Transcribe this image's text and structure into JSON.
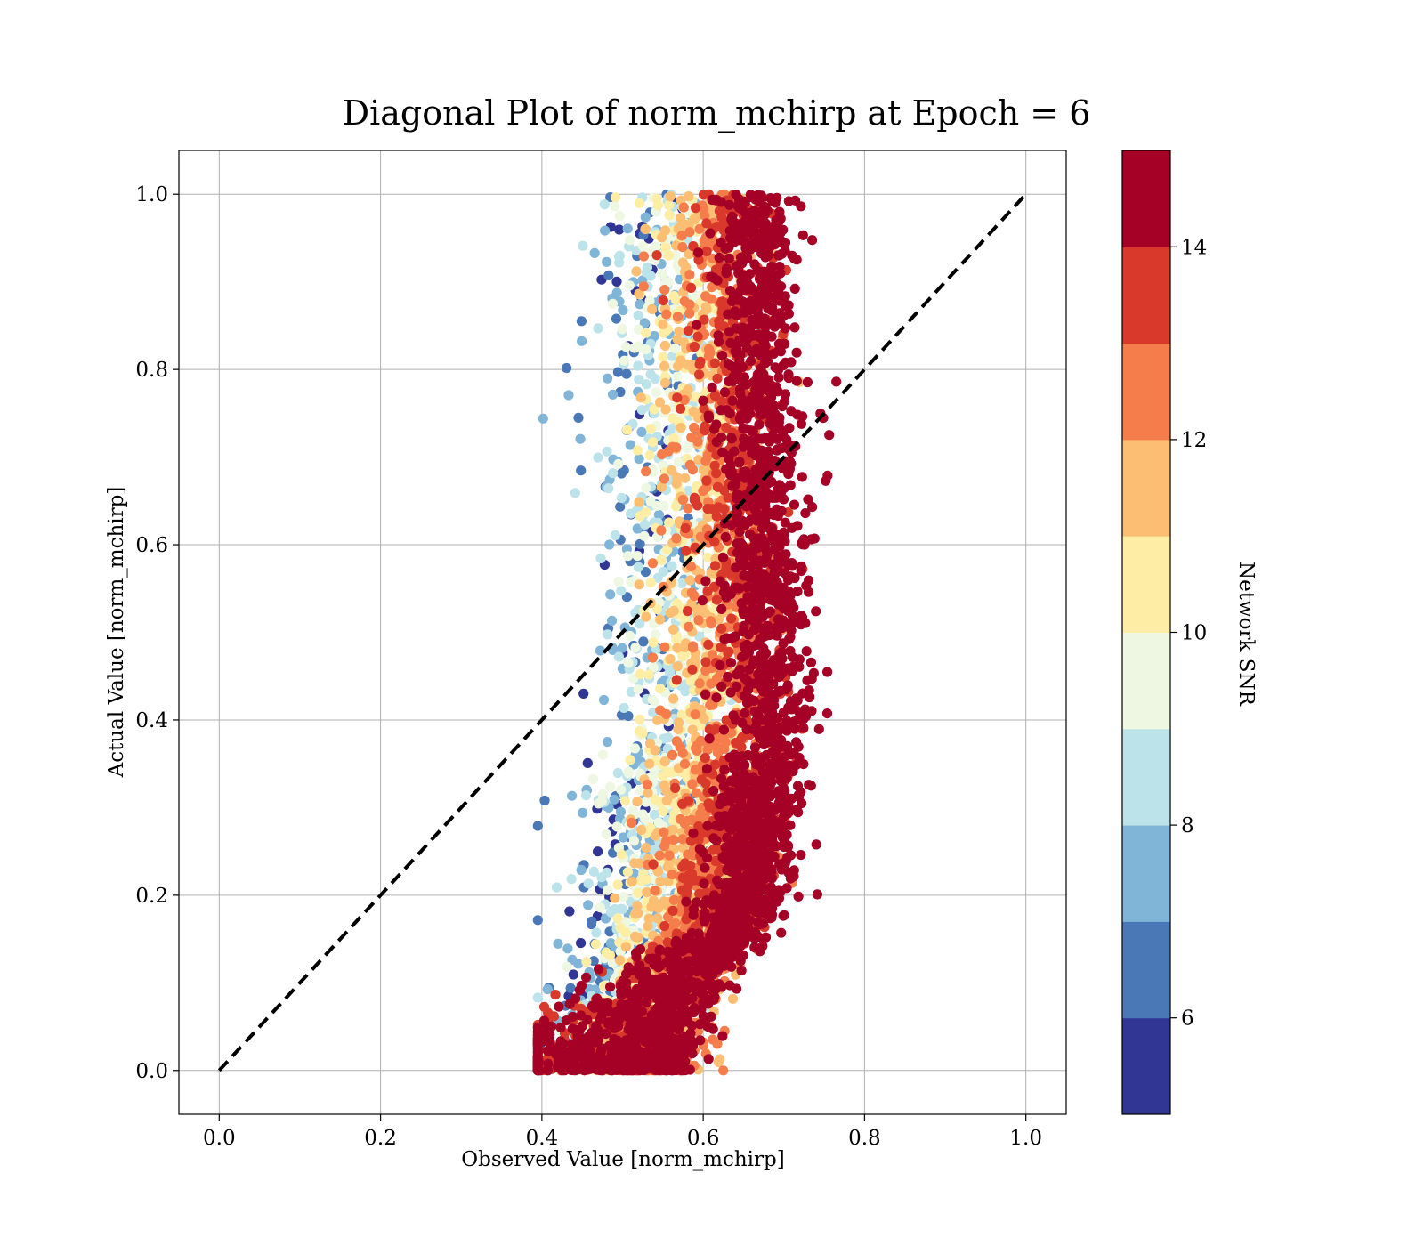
{
  "chart_data": {
    "type": "scatter",
    "title": "Diagonal Plot of norm_mchirp at Epoch = 6",
    "xlabel": "Observed Value [norm_mchirp]",
    "ylabel": "Actual Value [norm_mchirp]",
    "xlim": [
      -0.05,
      1.05
    ],
    "ylim": [
      -0.05,
      1.05
    ],
    "x_ticks": [
      "0.0",
      "0.2",
      "0.4",
      "0.6",
      "0.8",
      "1.0"
    ],
    "y_ticks": [
      "0.0",
      "0.2",
      "0.4",
      "0.6",
      "0.8",
      "1.0"
    ],
    "grid": true,
    "reference_line": {
      "x": [
        0.0,
        1.0
      ],
      "y": [
        0.0,
        1.0
      ],
      "style": "dashed",
      "color": "#000000"
    },
    "colorbar": {
      "label": "Network SNR",
      "range": [
        5,
        15
      ],
      "ticks": [
        "6",
        "8",
        "10",
        "12",
        "14"
      ],
      "bins": [
        {
          "from": 5,
          "to": 6,
          "color": "#313695"
        },
        {
          "from": 6,
          "to": 7,
          "color": "#4a78b6"
        },
        {
          "from": 7,
          "to": 8,
          "color": "#80b5d7"
        },
        {
          "from": 8,
          "to": 9,
          "color": "#bde3ea"
        },
        {
          "from": 9,
          "to": 10,
          "color": "#eef7e1"
        },
        {
          "from": 10,
          "to": 11,
          "color": "#fdeda5"
        },
        {
          "from": 11,
          "to": 12,
          "color": "#fcbe72"
        },
        {
          "from": 12,
          "to": 13,
          "color": "#f57c4b"
        },
        {
          "from": 13,
          "to": 14,
          "color": "#d9392b"
        },
        {
          "from": 14,
          "to": 15,
          "color": "#a50026"
        }
      ]
    },
    "scatter_model": {
      "description_of_distribution": "points cluster between observed 0.40 and 0.79; high SNR points follow a curved band from about 0.55 at actual 0 to about 0.70 at actual 1; low SNR points lie left near observed 0.47-0.55",
      "high_snr_center": [
        [
          0.0,
          0.57
        ],
        [
          0.1,
          0.62
        ],
        [
          0.2,
          0.66
        ],
        [
          0.4,
          0.69
        ],
        [
          0.6,
          0.68
        ],
        [
          0.8,
          0.67
        ],
        [
          1.0,
          0.67
        ]
      ],
      "low_snr_center": [
        [
          0.0,
          0.45
        ],
        [
          0.2,
          0.5
        ],
        [
          0.5,
          0.52
        ],
        [
          1.0,
          0.52
        ]
      ],
      "observed_range": [
        0.4,
        0.79
      ],
      "actual_range": [
        0.0,
        1.0
      ]
    }
  }
}
